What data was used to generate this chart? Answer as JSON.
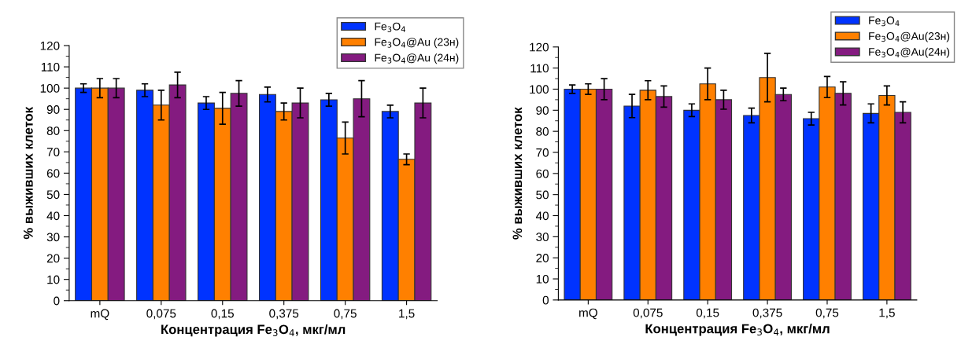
{
  "chart_data": [
    {
      "type": "bar",
      "xlabel": "Концентрация Fe$_{3}$O$_{4}$, мкг/мл",
      "ylabel": "% выживших клеток",
      "categories": [
        "mQ",
        "0,075",
        "0,15",
        "0,375",
        "0,75",
        "1,5"
      ],
      "ylim": [
        0,
        120
      ],
      "yticks": [
        0,
        {
          "value": 5,
          "label": null
        },
        10,
        {
          "value": 15,
          "label": null
        },
        20,
        {
          "value": 25,
          "label": null
        },
        30,
        {
          "value": 35,
          "label": null
        },
        40,
        {
          "value": 45,
          "label": null
        },
        50,
        {
          "value": 55,
          "label": null
        },
        60,
        {
          "value": 65,
          "label": null
        },
        70,
        {
          "value": 75,
          "label": null
        },
        80,
        {
          "value": 85,
          "label": null
        },
        90,
        {
          "value": 95,
          "label": null
        },
        100,
        {
          "value": 105,
          "label": null
        },
        110,
        {
          "value": 115,
          "label": null
        },
        120
      ],
      "legend": "top right",
      "grid": false,
      "series": [
        {
          "name": "Fe$_{3}$O$_{4}$",
          "color": "#0033ff",
          "values": [
            100,
            99,
            93,
            97,
            94.5,
            89
          ],
          "errors": [
            2,
            3,
            3,
            3.5,
            3,
            3
          ]
        },
        {
          "name": "Fe$_{3}$O$_{4}$@Au (23н)",
          "color": "#ff8000",
          "values": [
            100,
            92,
            90.5,
            89,
            76.5,
            66.5
          ],
          "errors": [
            4.5,
            7,
            7.5,
            4,
            7.5,
            2.5
          ]
        },
        {
          "name": "Fe$_{3}$O$_{4}$@Au (24н)",
          "color": "#841b80",
          "values": [
            100,
            101.5,
            97.5,
            93,
            95,
            93
          ],
          "errors": [
            4.5,
            6,
            6,
            7,
            8.5,
            7
          ]
        }
      ]
    },
    {
      "type": "bar",
      "xlabel": "Концентрация Fe$_{3}$O$_{4}$, мкг/мл",
      "ylabel": "% выживших клеток",
      "categories": [
        "mQ",
        "0,075",
        "0,15",
        "0,375",
        "0,75",
        "1,5"
      ],
      "ylim": [
        0,
        120
      ],
      "yticks": [
        0,
        {
          "value": 5,
          "label": null
        },
        10,
        {
          "value": 15,
          "label": null
        },
        20,
        {
          "value": 25,
          "label": null
        },
        30,
        {
          "value": 35,
          "label": null
        },
        40,
        {
          "value": 45,
          "label": null
        },
        50,
        {
          "value": 55,
          "label": null
        },
        60,
        {
          "value": 65,
          "label": null
        },
        70,
        {
          "value": 75,
          "label": null
        },
        80,
        {
          "value": 85,
          "label": null
        },
        90,
        {
          "value": 95,
          "label": null
        },
        100,
        {
          "value": 105,
          "label": null
        },
        110,
        {
          "value": 115,
          "label": null
        },
        120
      ],
      "legend": "top right",
      "grid": false,
      "series": [
        {
          "name": "Fe$_{3}$O$_{4}$",
          "color": "#0033ff",
          "values": [
            100,
            92,
            90,
            87.5,
            86,
            88.5
          ],
          "errors": [
            2,
            5.5,
            3,
            3.5,
            3,
            4.5
          ]
        },
        {
          "name": "Fe$_{3}$O$_{4}$@Au(23н)",
          "color": "#ff8000",
          "values": [
            100,
            99.5,
            102.5,
            105.5,
            101,
            97
          ],
          "errors": [
            2.5,
            4.5,
            7.5,
            11.5,
            5,
            4.5
          ]
        },
        {
          "name": "Fe$_{3}$O$_{4}$@Au(24н)",
          "color": "#841b80",
          "values": [
            100,
            96.5,
            95,
            97.5,
            98,
            89
          ],
          "errors": [
            5,
            5,
            4.5,
            3,
            5.5,
            5
          ]
        }
      ]
    }
  ]
}
